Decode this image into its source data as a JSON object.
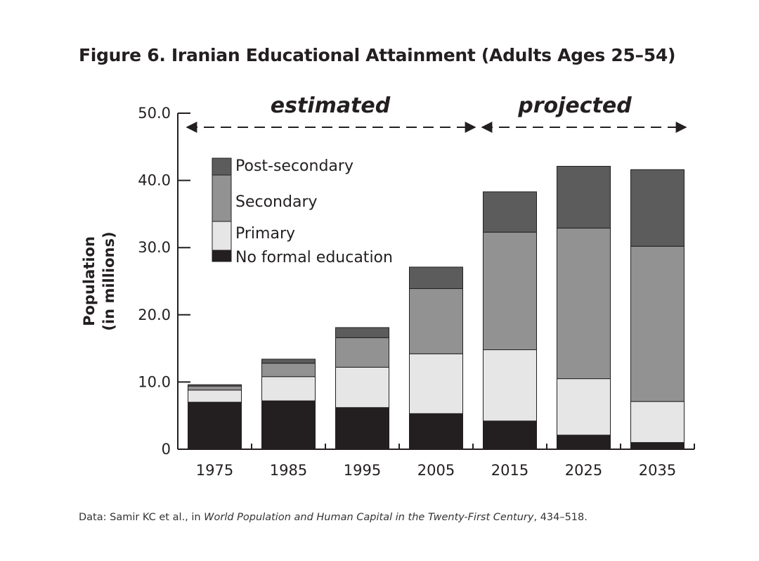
{
  "title": "Figure 6.  Iranian Educational Attainment (Adults Ages 25–54)",
  "source": {
    "prefix": "Data:  Samir KC et al., in ",
    "work": "World Population and Human Capital in the Twenty-First Century",
    "suffix": ", 434–518."
  },
  "annotations": {
    "estimated": "estimated",
    "projected": "projected"
  },
  "chart_data": {
    "type": "bar",
    "stacked": true,
    "categories": [
      "1975",
      "1985",
      "1995",
      "2005",
      "2015",
      "2025",
      "2035"
    ],
    "ylabel_lines": [
      "Population",
      "(in millions)"
    ],
    "ylim": [
      0,
      50
    ],
    "yticks": [
      0,
      10,
      20,
      30,
      40,
      50
    ],
    "ytick_labels": [
      "0",
      "10.0",
      "20.0",
      "30.0",
      "40.0",
      "50.0"
    ],
    "grid": false,
    "legend_position": "top-left",
    "series": [
      {
        "name": "No formal education",
        "color": "#231f20",
        "values": [
          7.0,
          7.2,
          6.2,
          5.3,
          4.2,
          2.1,
          1.0
        ]
      },
      {
        "name": "Primary",
        "color": "#e6e6e6",
        "values": [
          1.8,
          3.6,
          6.0,
          8.9,
          10.6,
          8.4,
          6.1
        ]
      },
      {
        "name": "Secondary",
        "color": "#929292",
        "values": [
          0.6,
          2.0,
          4.4,
          9.7,
          17.5,
          22.4,
          23.1
        ]
      },
      {
        "name": "Post-secondary",
        "color": "#5c5c5c",
        "values": [
          0.2,
          0.6,
          1.5,
          3.2,
          6.0,
          9.2,
          11.4
        ]
      }
    ],
    "legend_order": [
      "Post-secondary",
      "Secondary",
      "Primary",
      "No formal education"
    ]
  }
}
